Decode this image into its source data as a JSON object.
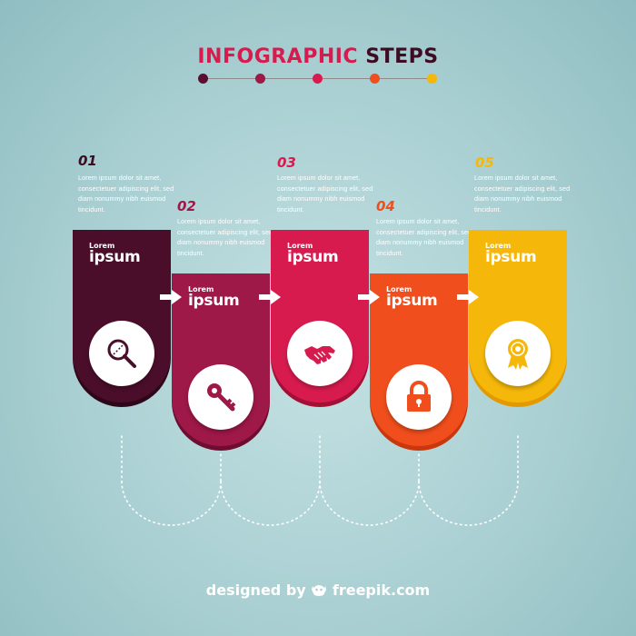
{
  "title": {
    "part1": "INFOGRAPHIC",
    "part2": "STEPS"
  },
  "title_dots": [
    "#5a0f32",
    "#9e1848",
    "#d81b4e",
    "#f04e1c",
    "#f5b80a"
  ],
  "steps": [
    {
      "number": "01",
      "color": "#4a0e2b",
      "dark": "#2e0619",
      "num_color": "#3f0b22",
      "description": "Lorem ipsum dolor sit amet, consectetuer adipiscing elit, sed diam nonummy nibh euismod tincidunt.",
      "label_small": "Lorem",
      "label_big": "ipsum",
      "icon": "magnifier-icon"
    },
    {
      "number": "02",
      "color": "#9e1848",
      "dark": "#6e0d30",
      "num_color": "#9e1848",
      "description": "Lorem ipsum dolor sit amet, consectetuer adipiscing elit, sed diam nonummy nibh euismod tincidunt.",
      "label_small": "Lorem",
      "label_big": "ipsum",
      "icon": "key-icon"
    },
    {
      "number": "03",
      "color": "#d81b4e",
      "dark": "#a30f35",
      "num_color": "#d81b4e",
      "description": "Lorem ipsum dolor sit amet, consectetuer adipiscing elit, sed diam nonummy nibh euismod tincidunt.",
      "label_small": "Lorem",
      "label_big": "ipsum",
      "icon": "handshake-icon"
    },
    {
      "number": "04",
      "color": "#f04e1c",
      "dark": "#c8380c",
      "num_color": "#f04e1c",
      "description": "Lorem ipsum dolor sit amet, consectetuer adipiscing elit, sed diam nonummy nibh euismod tincidunt.",
      "label_small": "Lorem",
      "label_big": "ipsum",
      "icon": "padlock-icon"
    },
    {
      "number": "05",
      "color": "#f5b80a",
      "dark": "#e39a00",
      "num_color": "#f5b80a",
      "description": "Lorem ipsum dolor sit amet, consectetuer adipiscing elit, sed diam nonummy nibh euismod tincidunt.",
      "label_small": "Lorem",
      "label_big": "ipsum",
      "icon": "award-ribbon-icon"
    }
  ],
  "credit": {
    "prefix": "designed by",
    "brand": "freepik.com"
  }
}
